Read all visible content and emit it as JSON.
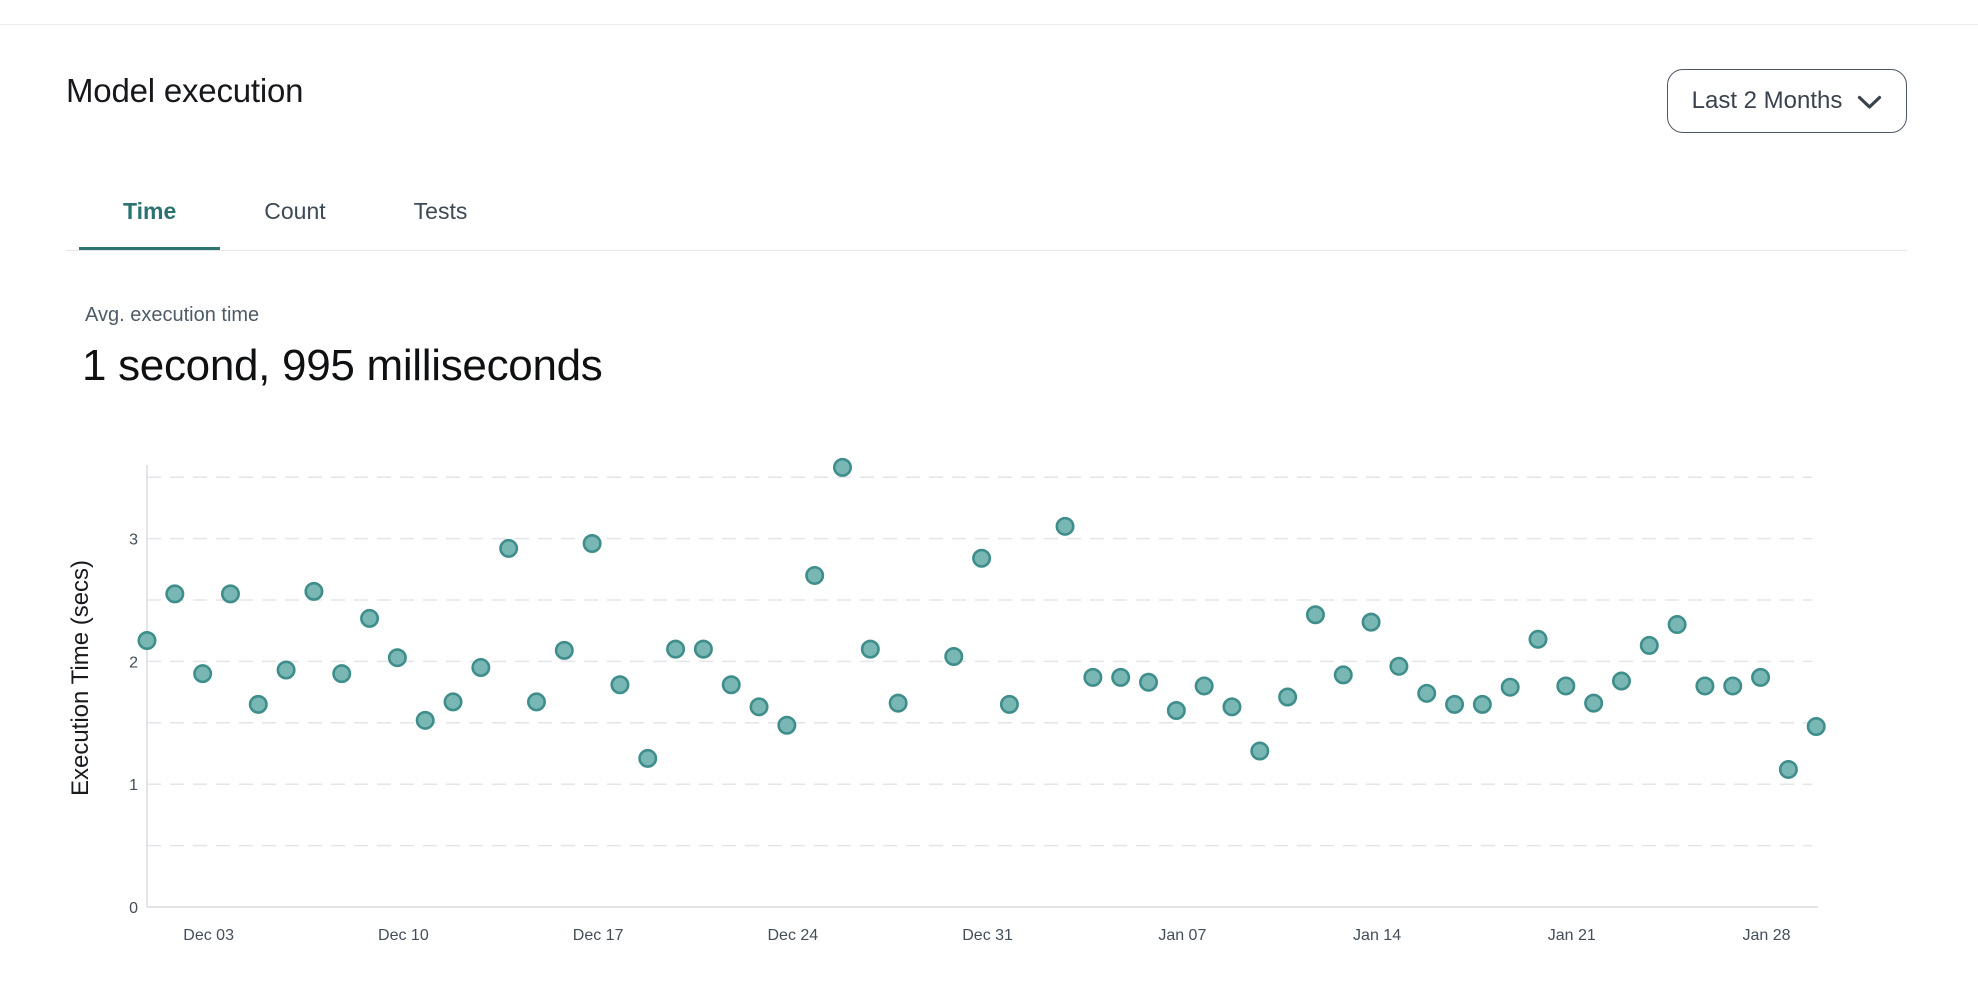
{
  "header": {
    "title": "Model execution"
  },
  "range_selector": {
    "value": "Last 2 Months",
    "icon": "chevron-down"
  },
  "tabs": {
    "items": [
      {
        "label": "Time",
        "active": true
      },
      {
        "label": "Count",
        "active": false
      },
      {
        "label": "Tests",
        "active": false
      }
    ],
    "active_color": "#2b7370"
  },
  "stat": {
    "label": "Avg. execution time",
    "value": "1 second, 995 milliseconds"
  },
  "chart_data": {
    "type": "scatter",
    "title": "",
    "xlabel": "",
    "ylabel": "Execution Time (secs)",
    "yticks": [
      0,
      1,
      2,
      3
    ],
    "ylim": [
      0,
      3.65
    ],
    "grid": {
      "horizontal_step": 0.5,
      "style": "dashed",
      "color": "#e4e5e9",
      "legend": "none"
    },
    "x_ticks": [
      {
        "day": 2,
        "label": "Dec 03"
      },
      {
        "day": 9,
        "label": "Dec 10"
      },
      {
        "day": 16,
        "label": "Dec 17"
      },
      {
        "day": 23,
        "label": "Dec 24"
      },
      {
        "day": 30,
        "label": "Dec 31"
      },
      {
        "day": 37,
        "label": "Jan 07"
      },
      {
        "day": 44,
        "label": "Jan 14"
      },
      {
        "day": 51,
        "label": "Jan 21"
      },
      {
        "day": 58,
        "label": "Jan 28"
      }
    ],
    "points": [
      {
        "day": 0,
        "value": 2.17
      },
      {
        "day": 1,
        "value": 2.55
      },
      {
        "day": 2,
        "value": 1.9
      },
      {
        "day": 3,
        "value": 2.55
      },
      {
        "day": 4,
        "value": 1.65
      },
      {
        "day": 5,
        "value": 1.93
      },
      {
        "day": 6,
        "value": 2.57
      },
      {
        "day": 7,
        "value": 1.9
      },
      {
        "day": 8,
        "value": 2.35
      },
      {
        "day": 9,
        "value": 2.03
      },
      {
        "day": 10,
        "value": 1.52
      },
      {
        "day": 11,
        "value": 1.67
      },
      {
        "day": 12,
        "value": 1.95
      },
      {
        "day": 13,
        "value": 2.92
      },
      {
        "day": 14,
        "value": 1.67
      },
      {
        "day": 15,
        "value": 2.09
      },
      {
        "day": 16,
        "value": 2.96
      },
      {
        "day": 17,
        "value": 1.81
      },
      {
        "day": 18,
        "value": 1.21
      },
      {
        "day": 19,
        "value": 2.1
      },
      {
        "day": 20,
        "value": 2.1
      },
      {
        "day": 21,
        "value": 1.81
      },
      {
        "day": 22,
        "value": 1.63
      },
      {
        "day": 23,
        "value": 1.48
      },
      {
        "day": 24,
        "value": 2.7
      },
      {
        "day": 25,
        "value": 3.58
      },
      {
        "day": 26,
        "value": 2.1
      },
      {
        "day": 27,
        "value": 1.66
      },
      {
        "day": 29,
        "value": 2.04
      },
      {
        "day": 30,
        "value": 2.84
      },
      {
        "day": 31,
        "value": 1.65
      },
      {
        "day": 33,
        "value": 3.1
      },
      {
        "day": 34,
        "value": 1.87
      },
      {
        "day": 35,
        "value": 1.87
      },
      {
        "day": 36,
        "value": 1.83
      },
      {
        "day": 37,
        "value": 1.6
      },
      {
        "day": 38,
        "value": 1.8
      },
      {
        "day": 39,
        "value": 1.63
      },
      {
        "day": 40,
        "value": 1.27
      },
      {
        "day": 41,
        "value": 1.71
      },
      {
        "day": 42,
        "value": 2.38
      },
      {
        "day": 43,
        "value": 1.89
      },
      {
        "day": 44,
        "value": 2.32
      },
      {
        "day": 45,
        "value": 1.96
      },
      {
        "day": 46,
        "value": 1.74
      },
      {
        "day": 47,
        "value": 1.65
      },
      {
        "day": 48,
        "value": 1.65
      },
      {
        "day": 49,
        "value": 1.79
      },
      {
        "day": 50,
        "value": 2.18
      },
      {
        "day": 51,
        "value": 1.8
      },
      {
        "day": 52,
        "value": 1.66
      },
      {
        "day": 53,
        "value": 1.84
      },
      {
        "day": 54,
        "value": 2.13
      },
      {
        "day": 55,
        "value": 2.3
      },
      {
        "day": 56,
        "value": 1.8
      },
      {
        "day": 57,
        "value": 1.8
      },
      {
        "day": 58,
        "value": 1.87
      },
      {
        "day": 59,
        "value": 1.12
      },
      {
        "day": 60,
        "value": 1.47
      }
    ],
    "point_color": "#79b7b4",
    "point_border_color": "#3f8e8b",
    "axis_color": "#d8dce2",
    "tick_label_color": "#434e59",
    "ylabel_color": "#171a1e"
  }
}
